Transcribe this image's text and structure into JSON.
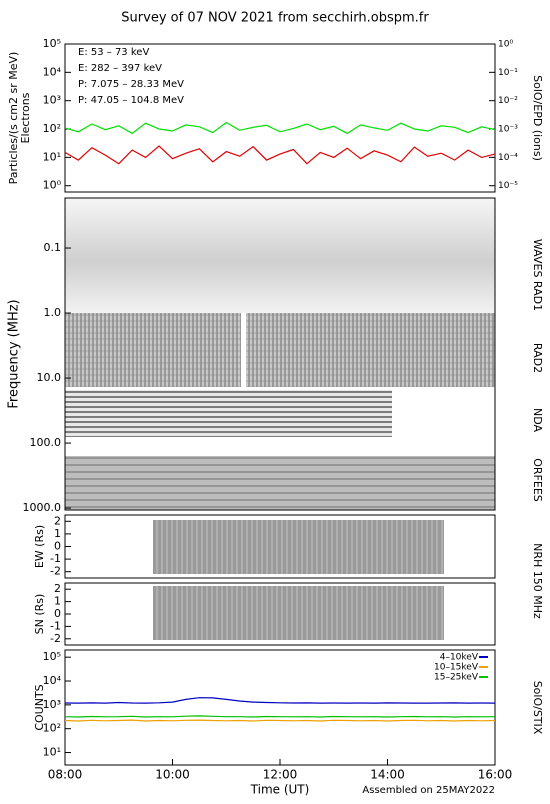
{
  "title": "Survey of 07 NOV 2021 from secchirh.obspm.fr",
  "footer": "Assembled on 25MAY2022",
  "chart_data": [
    {
      "type": "line",
      "y_label": "Particles/(s cm2 sr MeV)",
      "y_label2": "Electrons",
      "y2_label": "SolO/EPD (ions)",
      "log_y": true,
      "ylim": [
        0.6,
        100000
      ],
      "yticks": [
        {
          "value": 1,
          "label": "10⁰"
        },
        {
          "value": 10,
          "label": "10¹"
        },
        {
          "value": 100,
          "label": "10²"
        },
        {
          "value": 1000,
          "label": "10³"
        },
        {
          "value": 10000,
          "label": "10⁴"
        },
        {
          "value": 100000,
          "label": "10⁵"
        }
      ],
      "y2lim": [
        6e-06,
        1
      ],
      "y2ticks": [
        {
          "value": 1e-05,
          "label": "10⁻⁵"
        },
        {
          "value": 0.0001,
          "label": "10⁻⁴"
        },
        {
          "value": 0.001,
          "label": "10⁻³"
        },
        {
          "value": 0.01,
          "label": "10⁻²"
        },
        {
          "value": 0.1,
          "label": "10⁻¹"
        },
        {
          "value": 1,
          "label": "10⁰"
        }
      ],
      "legend": "top-left",
      "x": [
        8,
        8.25,
        8.5,
        8.75,
        9,
        9.25,
        9.5,
        9.75,
        10,
        10.25,
        10.5,
        10.75,
        11,
        11.25,
        11.5,
        11.75,
        12,
        12.25,
        12.5,
        12.75,
        13,
        13.25,
        13.5,
        13.75,
        14,
        14.25,
        14.5,
        14.75,
        15,
        15.25,
        15.5,
        15.75,
        16
      ],
      "series": [
        {
          "name": "E: 53 – 73 keV",
          "color": "#00e000",
          "values": [
            110,
            80,
            150,
            95,
            130,
            70,
            160,
            100,
            85,
            140,
            120,
            75,
            170,
            90,
            115,
            135,
            80,
            105,
            150,
            95,
            125,
            70,
            140,
            110,
            90,
            160,
            100,
            85,
            130,
            115,
            75,
            120,
            95
          ]
        },
        {
          "name": "E: 282 – 397 keV",
          "color": "#e00000",
          "values": [
            15,
            8,
            22,
            12,
            6,
            18,
            10,
            25,
            9,
            14,
            20,
            7,
            16,
            11,
            24,
            8,
            13,
            19,
            6,
            15,
            10,
            21,
            9,
            17,
            12,
            7,
            23,
            11,
            14,
            8,
            18,
            10,
            13
          ]
        },
        {
          "name": "P: 7.075 – 28.33 MeV",
          "color": "#000000",
          "axis": "y2",
          "values": [
            null,
            null,
            null,
            null,
            null,
            null,
            null,
            null,
            null,
            null,
            null,
            null,
            null,
            null,
            null,
            null,
            null,
            null,
            null,
            null,
            null,
            null,
            null,
            null,
            null,
            null,
            null,
            null,
            null,
            null,
            null,
            null,
            null
          ]
        },
        {
          "name": "P: 47.05 – 104.8 MeV",
          "color": "#0000c0",
          "axis": "y2",
          "values": [
            null,
            null,
            null,
            null,
            null,
            null,
            null,
            null,
            null,
            null,
            null,
            null,
            null,
            null,
            null,
            null,
            null,
            null,
            null,
            null,
            null,
            null,
            null,
            null,
            null,
            null,
            null,
            null,
            null,
            null,
            null,
            null,
            null
          ]
        }
      ]
    },
    {
      "type": "spectrogram",
      "y_label": "Frequency (MHz)",
      "log_y": true,
      "y_reversed": true,
      "ylim": [
        0.017,
        1070
      ],
      "yticks": [
        0.1,
        {
          "value": 1,
          "label": "1.0"
        },
        {
          "value": 10,
          "label": "10.0"
        },
        {
          "value": 100,
          "label": "100.0"
        },
        {
          "value": 1000,
          "label": "1000.0"
        }
      ],
      "instruments": [
        "WAVES RAD1",
        "RAD2",
        "NDA",
        "ORFEES"
      ]
    },
    {
      "type": "image",
      "y_label": "EW (Rs)",
      "ylim": [
        -2.5,
        2.5
      ],
      "yticks": [
        2,
        1,
        0,
        -1,
        -2
      ],
      "instrument": "NRH 150 MHz"
    },
    {
      "type": "image",
      "y_label": "SN (Rs)",
      "ylim": [
        -2.5,
        2.5
      ],
      "yticks": [
        2,
        1,
        0,
        -1,
        -2
      ]
    },
    {
      "type": "line",
      "y_label": "COUNTS",
      "y2_label": "SolO/STIX",
      "log_y": true,
      "ylim": [
        3,
        200000
      ],
      "yticks": [
        {
          "value": 10,
          "label": "10¹"
        },
        {
          "value": 100,
          "label": "10²"
        },
        {
          "value": 1000,
          "label": "10³"
        },
        {
          "value": 10000,
          "label": "10⁴"
        },
        {
          "value": 100000,
          "label": "10⁵"
        }
      ],
      "xlim": [
        8,
        16
      ],
      "xticks": [
        {
          "value": 8,
          "label": "08:00"
        },
        {
          "value": 10,
          "label": "10:00"
        },
        {
          "value": 12,
          "label": "12:00"
        },
        {
          "value": 14,
          "label": "14:00"
        },
        {
          "value": 16,
          "label": "16:00"
        }
      ],
      "x_label": "Time (UT)",
      "legend": "top-right",
      "x": [
        8,
        8.25,
        8.5,
        8.75,
        9,
        9.25,
        9.5,
        9.75,
        10,
        10.25,
        10.5,
        10.75,
        11,
        11.25,
        11.5,
        11.75,
        12,
        12.25,
        12.5,
        12.75,
        13,
        13.25,
        13.5,
        13.75,
        14,
        14.25,
        14.5,
        14.75,
        15,
        15.25,
        15.5,
        15.75,
        16
      ],
      "series": [
        {
          "name": "4–10keV",
          "color": "#0000c0",
          "values": [
            1200,
            1180,
            1210,
            1190,
            1250,
            1200,
            1180,
            1220,
            1300,
            1700,
            2000,
            1950,
            1700,
            1450,
            1300,
            1250,
            1220,
            1200,
            1210,
            1190,
            1200,
            1180,
            1200,
            1190,
            1210,
            1200,
            1180,
            1190,
            1200,
            1210,
            1180,
            1200,
            1190
          ]
        },
        {
          "name": "10–15keV",
          "color": "#f0a000",
          "values": [
            220,
            210,
            225,
            215,
            220,
            230,
            210,
            220,
            215,
            225,
            230,
            220,
            215,
            220,
            210,
            225,
            220,
            215,
            220,
            210,
            225,
            220,
            215,
            220,
            210,
            220,
            225,
            215,
            220,
            210,
            220,
            215,
            220
          ]
        },
        {
          "name": "15–25keV",
          "color": "#00c000",
          "values": [
            320,
            310,
            325,
            315,
            320,
            330,
            310,
            320,
            315,
            335,
            345,
            330,
            320,
            320,
            310,
            325,
            320,
            315,
            320,
            310,
            325,
            320,
            315,
            320,
            310,
            320,
            325,
            315,
            320,
            310,
            320,
            315,
            320
          ]
        }
      ]
    }
  ]
}
